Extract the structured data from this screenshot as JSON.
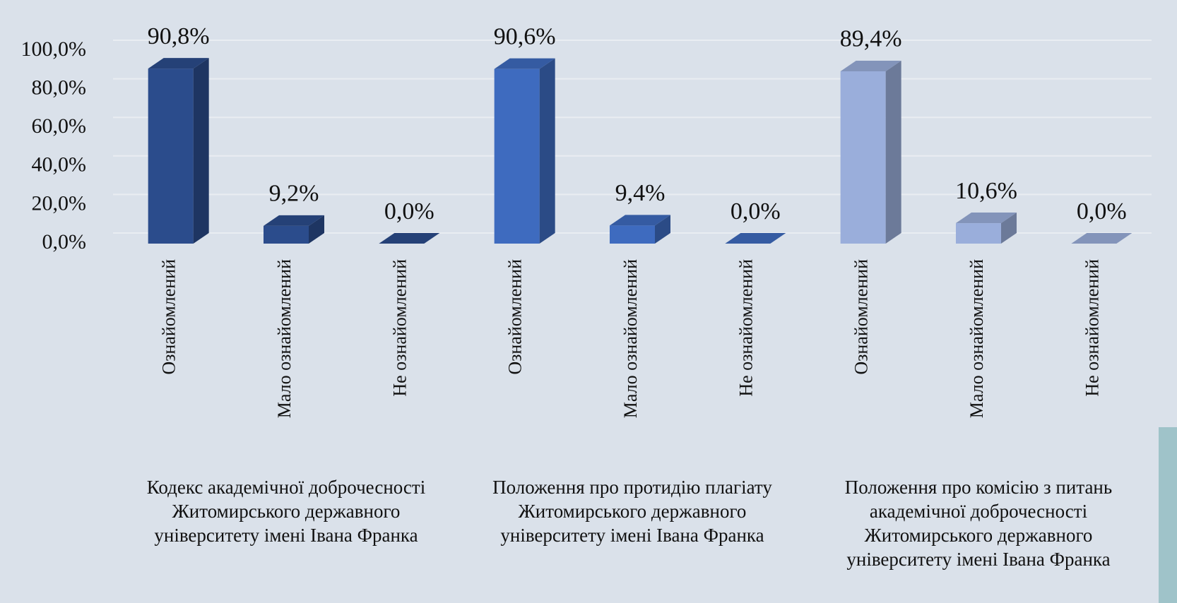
{
  "chart_data": {
    "type": "bar",
    "groups": [
      {
        "name": "Кодекс академічної доброчесності Житомирського державного університету імені Івана Франка",
        "color": "#2b4c8c",
        "categories": [
          "Ознайомлений",
          "Мало ознайомлений",
          "Не ознайомлений"
        ],
        "values": [
          90.8,
          9.2,
          0.0
        ],
        "value_labels": [
          "90,8%",
          "9,2%",
          "0,0%"
        ]
      },
      {
        "name": "Положення про протидію плагіату Житомирського державного університету імені Івана Франка",
        "color": "#3e6bbf",
        "categories": [
          "Ознайомлений",
          "Мало ознайомлений",
          "Не ознайомлений"
        ],
        "values": [
          90.6,
          9.4,
          0.0
        ],
        "value_labels": [
          "90,6%",
          "9,4%",
          "0,0%"
        ]
      },
      {
        "name": "Положення про комісію з питань академічної доброчесності Житомирського державного університету імені Івана Франка",
        "color": "#9aaedb",
        "categories": [
          "Ознайомлений",
          "Мало ознайомлений",
          "Не ознайомлений"
        ],
        "values": [
          89.4,
          10.6,
          0.0
        ],
        "value_labels": [
          "89,4%",
          "10,6%",
          "0,0%"
        ]
      }
    ],
    "ylim": [
      0,
      100
    ],
    "yticks": [
      {
        "value": 0,
        "label": "0,0%"
      },
      {
        "value": 20,
        "label": "20,0%"
      },
      {
        "value": 40,
        "label": "40,0%"
      },
      {
        "value": 60,
        "label": "60,0%"
      },
      {
        "value": 80,
        "label": "80,0%"
      },
      {
        "value": 100,
        "label": "100,0%"
      }
    ],
    "grid": true
  }
}
